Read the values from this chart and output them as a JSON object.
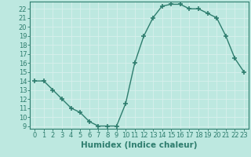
{
  "x": [
    0,
    1,
    2,
    3,
    4,
    5,
    6,
    7,
    8,
    9,
    10,
    11,
    12,
    13,
    14,
    15,
    16,
    17,
    18,
    19,
    20,
    21,
    22,
    23
  ],
  "y": [
    14,
    14,
    13,
    12,
    11,
    10.5,
    9.5,
    9,
    9,
    9,
    11.5,
    16,
    19,
    21,
    22.3,
    22.5,
    22.5,
    22,
    22,
    21.5,
    21,
    19,
    16.5,
    15
  ],
  "line_color": "#2e7d6e",
  "marker_color": "#2e7d6e",
  "bg_color": "#bde8e0",
  "grid_color": "#d8f0ec",
  "xlabel": "Humidex (Indice chaleur)",
  "xlim": [
    -0.5,
    23.5
  ],
  "ylim": [
    8.7,
    22.8
  ],
  "yticks": [
    9,
    10,
    11,
    12,
    13,
    14,
    15,
    16,
    17,
    18,
    19,
    20,
    21,
    22
  ],
  "xticks": [
    0,
    1,
    2,
    3,
    4,
    5,
    6,
    7,
    8,
    9,
    10,
    11,
    12,
    13,
    14,
    15,
    16,
    17,
    18,
    19,
    20,
    21,
    22,
    23
  ],
  "axis_color": "#2e7d6e",
  "tick_label_color": "#2e7d6e",
  "xlabel_color": "#2e7d6e",
  "font_size": 6.0,
  "xlabel_fontsize": 7.5,
  "marker_size": 4,
  "marker_edge_width": 1.2,
  "line_width": 1.0
}
